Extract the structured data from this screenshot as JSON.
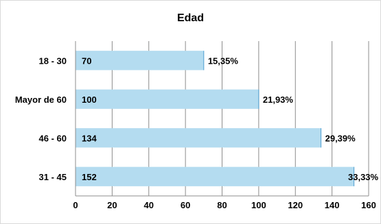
{
  "chart_data": {
    "type": "bar",
    "orientation": "horizontal",
    "title": "Edad",
    "xlabel": "",
    "ylabel": "",
    "categories": [
      "18 - 30",
      "Mayor de  60",
      "46 - 60",
      "31 - 45"
    ],
    "values": [
      70,
      100,
      134,
      152
    ],
    "percent_labels": [
      "15,35%",
      "21,93%",
      "29,39%",
      "33,33%"
    ],
    "xlim": [
      0,
      160
    ],
    "x_ticks": [
      0,
      20,
      40,
      60,
      80,
      100,
      120,
      140,
      160
    ],
    "grid": "vertical",
    "legend": "none",
    "bar_color": "#b4dcf0",
    "bar_edge_color": "#4f9fd0",
    "grid_color": "#8c8c8c"
  }
}
